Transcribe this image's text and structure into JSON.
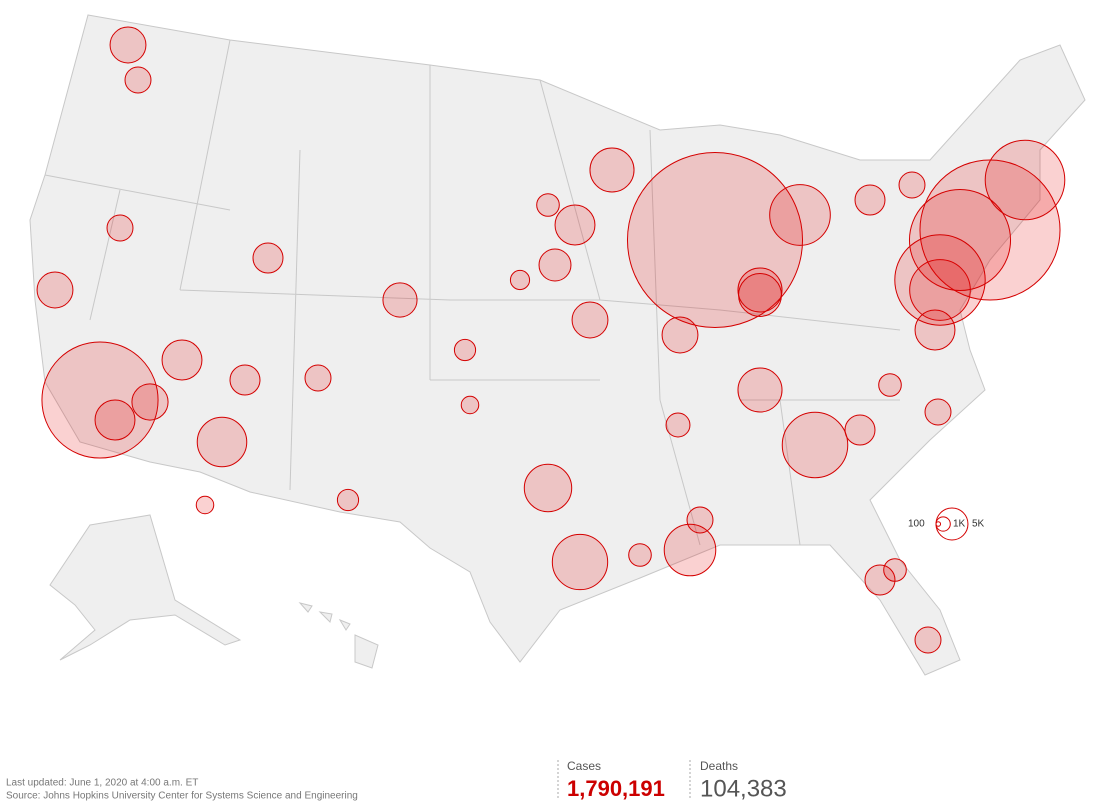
{
  "legend": {
    "sizes": [
      {
        "value": 100,
        "label": "100"
      },
      {
        "value": 1000,
        "label": "1K"
      },
      {
        "value": 5000,
        "label": "5K"
      }
    ]
  },
  "bubbles": [
    66000,
    6400,
    7800,
    6300,
    6300,
    12000,
    7800,
    4400,
    5700,
    11000,
    15000,
    13000,
    150000,
    18000,
    9500,
    9500,
    96000,
    31000,
    18000,
    7800,
    21000,
    9500,
    6300,
    6300,
    3300,
    3300,
    4400,
    3300,
    7800,
    2500,
    5000,
    4400,
    9000,
    3300,
    4400,
    2800,
    2500,
    3300,
    2200,
    1800,
    3300,
    2500,
    50000,
    40000,
    4400,
    2200,
    1500,
    1500,
    3300,
    2500
  ],
  "footer": {
    "updated": "Last updated: June 1, 2020 at 4:00 a.m. ET",
    "source": "Source: Johns Hopkins University Center for Systems Science and Engineering"
  },
  "totals": {
    "cases_label": "Cases",
    "cases": "1,790,191",
    "deaths_label": "Deaths",
    "deaths": "104,383"
  }
}
